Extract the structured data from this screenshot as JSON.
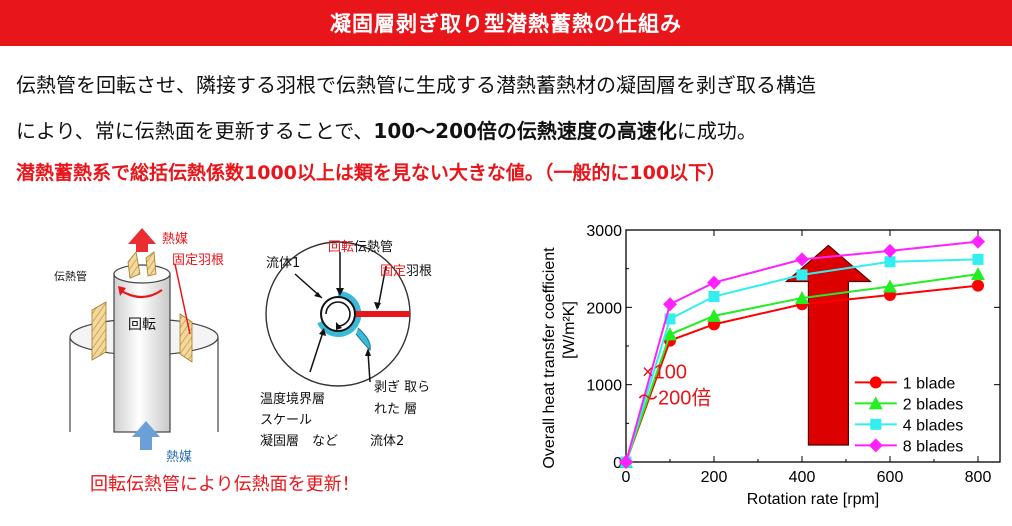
{
  "header": {
    "title": "凝固層剥ぎ取り型潜熱蓄熱の仕組み"
  },
  "description": {
    "line1": "伝熱管を回転させ、隣接する羽根で伝熱管に生成する潜熱蓄熱材の凝固層を剥ぎ取る構造",
    "line2_prefix": "により、常に伝熱面を更新することで、",
    "line2_bold": "100～200倍の伝熱速度の高速化",
    "line2_suffix": "に成功。",
    "line3": "潜熱蓄熱系で総括伝熱係数1000以上は類を見ない大きな値。（一般的に100以下）"
  },
  "diagram": {
    "heat_medium_top": "熱媒",
    "heat_medium_bottom": "熱媒",
    "fixed_blade_1": "固定羽根",
    "heat_tube": "伝熱管",
    "rotation": "回転",
    "fluid1": "流体1",
    "rotating_tube_red": "回転",
    "rotating_tube_rest": "伝熱管",
    "fixed_blade_2_red": "固定",
    "fixed_blade_2_rest": "羽根",
    "layer_labels": [
      "温度境界層",
      "スケール",
      "凝固層　など"
    ],
    "peeled_line1": "剥ぎ 取ら",
    "peeled_line2": "れた 層",
    "fluid2": "流体2",
    "caption": "回転伝熱管により伝熱面を更新！",
    "colors": {
      "red": "#e8161b",
      "blue": "#2b6fb5",
      "cyan": "#3bb9d8",
      "blade": "#e0b060"
    }
  },
  "chart_data": {
    "type": "line",
    "x": [
      0,
      100,
      200,
      400,
      600,
      800
    ],
    "series": [
      {
        "name": "1 blade",
        "color": "#ff0000",
        "marker": "circle",
        "values": [
          0,
          1570,
          1780,
          2040,
          2160,
          2280
        ]
      },
      {
        "name": "2 blades",
        "color": "#22ee22",
        "marker": "triangle",
        "values": [
          0,
          1650,
          1890,
          2120,
          2270,
          2430
        ]
      },
      {
        "name": "4 blades",
        "color": "#33eeee",
        "marker": "square",
        "values": [
          0,
          1850,
          2140,
          2420,
          2590,
          2620
        ]
      },
      {
        "name": "8 blades",
        "color": "#ff22ff",
        "marker": "diamond",
        "values": [
          0,
          2040,
          2320,
          2620,
          2730,
          2850
        ]
      }
    ],
    "xlabel": "Rotation rate [rpm]",
    "ylabel": "Overall heat transfer coefficient [W/m²K]",
    "ylabel_line1": "Overall heat transfer coefficient",
    "ylabel_line2": "[W/m²K]",
    "xlim": [
      0,
      850
    ],
    "ylim": [
      0,
      3000
    ],
    "xticks": [
      0,
      200,
      400,
      600,
      800
    ],
    "yticks": [
      0,
      1000,
      2000,
      3000
    ],
    "annotation_line1": "×100",
    "annotation_line2": "～200倍",
    "annotation_color": "#e8161b",
    "arrow_color": "#dd0000",
    "legend_position": "bottom-right"
  }
}
